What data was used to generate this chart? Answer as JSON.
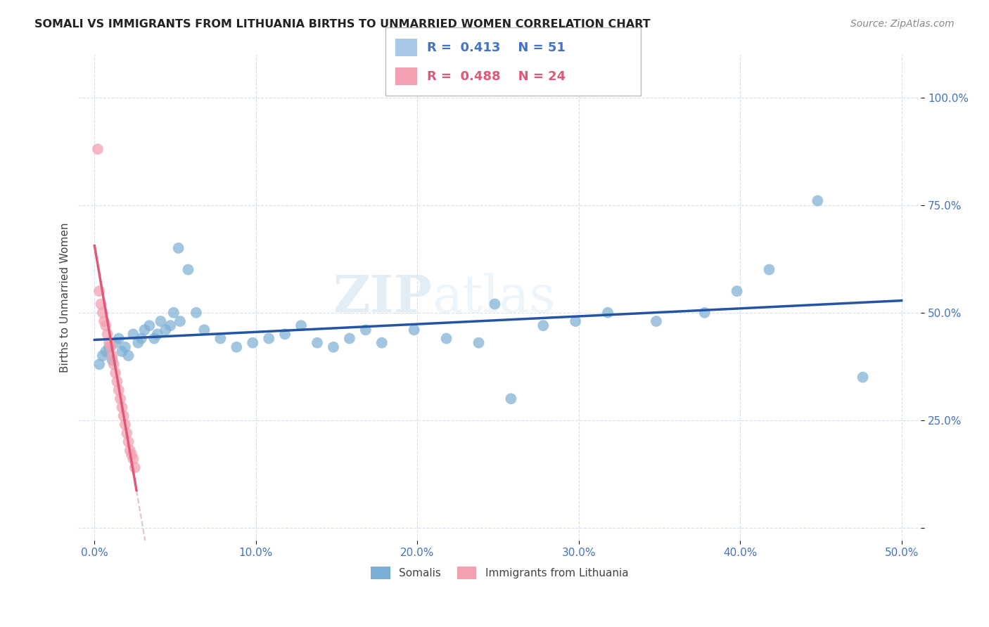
{
  "title": "SOMALI VS IMMIGRANTS FROM LITHUANIA BIRTHS TO UNMARRIED WOMEN CORRELATION CHART",
  "source": "Source: ZipAtlas.com",
  "ylabel": "Births to Unmarried Women",
  "xtick_labels": [
    "0.0%",
    "10.0%",
    "20.0%",
    "30.0%",
    "40.0%",
    "50.0%"
  ],
  "xtick_vals": [
    0.0,
    0.1,
    0.2,
    0.3,
    0.4,
    0.5
  ],
  "ytick_labels": [
    "",
    "25.0%",
    "50.0%",
    "75.0%",
    "100.0%"
  ],
  "ytick_vals": [
    0.0,
    0.25,
    0.5,
    0.75,
    1.0
  ],
  "watermark_zip": "ZIP",
  "watermark_atlas": "atlas",
  "legend_r1": "0.413",
  "legend_n1": "51",
  "legend_r2": "0.488",
  "legend_n2": "24",
  "somali_color": "#7bafd4",
  "lithuania_color": "#f4a0b0",
  "trendline_blue": "#2455a4",
  "trendline_pink": "#e05878",
  "trendline_pink_dashed": "#ddb0bc",
  "blue_legend_box": "#a8c8e8",
  "pink_legend_box": "#f4a0b0",
  "legend_text_color": "#4472c4",
  "bottom_legend_blue_label": "Somalis",
  "bottom_legend_pink_label": "Immigrants from Lithuania",
  "somali_x": [
    0.003,
    0.005,
    0.007,
    0.009,
    0.011,
    0.013,
    0.015,
    0.017,
    0.019,
    0.021,
    0.024,
    0.027,
    0.029,
    0.031,
    0.034,
    0.037,
    0.039,
    0.041,
    0.044,
    0.047,
    0.049,
    0.053,
    0.058,
    0.063,
    0.068,
    0.078,
    0.088,
    0.098,
    0.108,
    0.118,
    0.128,
    0.138,
    0.148,
    0.158,
    0.168,
    0.178,
    0.198,
    0.218,
    0.238,
    0.258,
    0.278,
    0.298,
    0.318,
    0.348,
    0.378,
    0.398,
    0.418,
    0.448,
    0.476,
    0.052,
    0.248
  ],
  "somali_y": [
    0.38,
    0.4,
    0.41,
    0.42,
    0.39,
    0.43,
    0.44,
    0.41,
    0.42,
    0.4,
    0.45,
    0.43,
    0.44,
    0.46,
    0.47,
    0.44,
    0.45,
    0.48,
    0.46,
    0.47,
    0.5,
    0.48,
    0.6,
    0.5,
    0.46,
    0.44,
    0.42,
    0.43,
    0.44,
    0.45,
    0.47,
    0.43,
    0.42,
    0.44,
    0.46,
    0.43,
    0.46,
    0.44,
    0.43,
    0.3,
    0.47,
    0.48,
    0.5,
    0.48,
    0.5,
    0.55,
    0.6,
    0.76,
    0.35,
    0.65,
    0.52
  ],
  "lithuania_x": [
    0.002,
    0.003,
    0.004,
    0.005,
    0.006,
    0.007,
    0.008,
    0.009,
    0.01,
    0.011,
    0.012,
    0.013,
    0.014,
    0.015,
    0.016,
    0.017,
    0.018,
    0.019,
    0.02,
    0.021,
    0.022,
    0.023,
    0.024,
    0.025
  ],
  "lithuania_y": [
    0.88,
    0.55,
    0.52,
    0.5,
    0.48,
    0.47,
    0.45,
    0.43,
    0.42,
    0.4,
    0.38,
    0.36,
    0.34,
    0.32,
    0.3,
    0.28,
    0.26,
    0.24,
    0.22,
    0.2,
    0.18,
    0.17,
    0.16,
    0.14
  ]
}
